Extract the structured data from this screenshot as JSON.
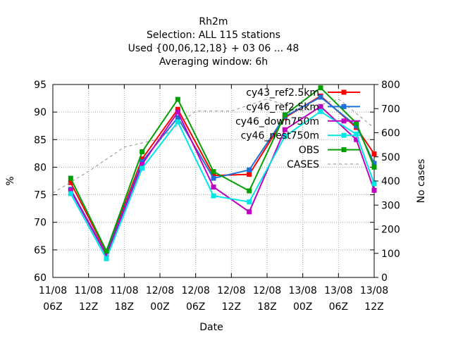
{
  "title_lines": [
    "Rh2m",
    "Selection: ALL     115 stations",
    "Used {00,06,12,18} + 03 06 ... 48",
    "Averaging window:  6h"
  ],
  "colors": {
    "cy43_ref2.5km": "#ff0000",
    "cy46_ref2.5km": "#1e6fd9",
    "cy46_down750m": "#c000c0",
    "cy46_nest750m": "#00e6e6",
    "OBS": "#00a000",
    "CASES": "#909090",
    "axis": "#000000",
    "grid": "#a0a0a0"
  },
  "chart_data": {
    "type": "line",
    "title": "Rh2m",
    "xlabel": "Date",
    "ylabel": "%",
    "y2label": "No cases",
    "x": [
      "11/08 06Z",
      "11/08 12Z",
      "11/08 18Z",
      "12/08 00Z",
      "12/08 06Z",
      "12/08 12Z",
      "12/08 18Z",
      "13/08 00Z",
      "13/08 06Z",
      "13/08 12Z"
    ],
    "x_ticks": [
      {
        "top": "11/08",
        "bottom": "06Z"
      },
      {
        "top": "11/08",
        "bottom": "12Z"
      },
      {
        "top": "11/08",
        "bottom": "18Z"
      },
      {
        "top": "12/08",
        "bottom": "00Z"
      },
      {
        "top": "12/08",
        "bottom": "06Z"
      },
      {
        "top": "12/08",
        "bottom": "12Z"
      },
      {
        "top": "12/08",
        "bottom": "18Z"
      },
      {
        "top": "13/08",
        "bottom": "00Z"
      },
      {
        "top": "13/08",
        "bottom": "06Z"
      },
      {
        "top": "13/08",
        "bottom": "12Z"
      }
    ],
    "xlim": [
      "11/08 06Z",
      "13/08 12Z"
    ],
    "ylim": [
      60,
      95
    ],
    "y_ticks": [
      60,
      65,
      70,
      75,
      80,
      85,
      90,
      95
    ],
    "y2lim": [
      0,
      800
    ],
    "y2_ticks": [
      0,
      100,
      200,
      300,
      400,
      500,
      600,
      700,
      800
    ],
    "grid": true,
    "legend_position": "top-right",
    "series": [
      {
        "name": "cy43_ref2.5km",
        "axis": "left",
        "style": "line+points",
        "x": [
          "11/08 09Z",
          "11/08 15Z",
          "11/08 21Z",
          "12/08 03Z",
          "12/08 09Z",
          "12/08 15Z",
          "12/08 21Z",
          "13/08 03Z",
          "13/08 09Z",
          "13/08 12Z"
        ],
        "values": [
          77.2,
          64.6,
          81.5,
          90.5,
          78.5,
          78.7,
          89.0,
          92.9,
          87.2,
          82.4
        ]
      },
      {
        "name": "cy46_ref2.5km",
        "axis": "left",
        "style": "line+points",
        "x": [
          "11/08 09Z",
          "11/08 15Z",
          "11/08 21Z",
          "12/08 03Z",
          "12/08 09Z",
          "12/08 15Z",
          "12/08 21Z",
          "13/08 03Z",
          "13/08 09Z",
          "13/08 12Z"
        ],
        "values": [
          76.0,
          64.2,
          81.0,
          89.0,
          78.0,
          79.5,
          89.2,
          92.7,
          87.5,
          80.7
        ]
      },
      {
        "name": "cy46_down750m",
        "axis": "left",
        "style": "line+points",
        "x": [
          "11/08 09Z",
          "11/08 15Z",
          "11/08 21Z",
          "12/08 03Z",
          "12/08 09Z",
          "12/08 15Z",
          "12/08 21Z",
          "13/08 03Z",
          "13/08 09Z",
          "13/08 12Z"
        ],
        "values": [
          75.8,
          64.0,
          80.5,
          90.0,
          76.4,
          71.9,
          86.8,
          91.0,
          85.0,
          75.8
        ]
      },
      {
        "name": "cy46_nest750m",
        "axis": "left",
        "style": "line+points",
        "x": [
          "11/08 09Z",
          "11/08 15Z",
          "11/08 21Z",
          "12/08 03Z",
          "12/08 09Z",
          "12/08 15Z",
          "12/08 21Z",
          "13/08 03Z",
          "13/08 09Z",
          "13/08 12Z"
        ],
        "values": [
          75.2,
          63.4,
          79.8,
          88.2,
          74.8,
          73.7,
          85.6,
          90.1,
          86.0,
          77.0
        ]
      },
      {
        "name": "OBS",
        "axis": "left",
        "style": "line+points",
        "x": [
          "11/08 09Z",
          "11/08 15Z",
          "11/08 21Z",
          "12/08 03Z",
          "12/08 09Z",
          "12/08 15Z",
          "12/08 21Z",
          "13/08 03Z",
          "13/08 09Z",
          "13/08 12Z"
        ],
        "values": [
          78.0,
          64.8,
          82.8,
          92.3,
          79.2,
          75.7,
          89.5,
          94.4,
          88.0,
          80.0
        ]
      },
      {
        "name": "CASES",
        "axis": "right",
        "style": "dashed",
        "x": [
          "11/08 06Z",
          "11/08 12Z",
          "11/08 18Z",
          "12/08 00Z",
          "12/08 06Z",
          "12/08 12Z",
          "12/08 18Z",
          "13/08 00Z",
          "13/08 06Z",
          "13/08 12Z"
        ],
        "values": [
          350,
          440,
          540,
          575,
          690,
          690,
          740,
          690,
          740,
          620
        ]
      }
    ]
  }
}
